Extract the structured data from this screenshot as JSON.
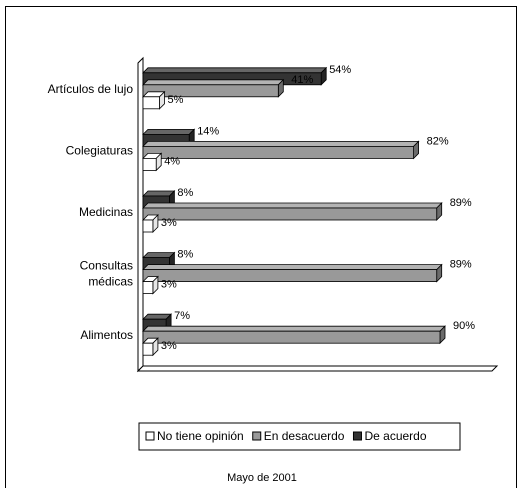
{
  "chart_data": {
    "type": "bar",
    "orientation": "horizontal",
    "three_d": true,
    "categories": [
      [
        "Artículos de lujo"
      ],
      [
        "Colegiaturas"
      ],
      [
        "Medicinas"
      ],
      [
        "Consultas",
        "médicas"
      ],
      [
        "Alimentos"
      ]
    ],
    "series": [
      {
        "name": "De acuerdo",
        "color": "#333333",
        "values": [
          54,
          14,
          8,
          8,
          7
        ]
      },
      {
        "name": "En desacuerdo",
        "color": "#999999",
        "values": [
          41,
          82,
          89,
          89,
          90
        ]
      },
      {
        "name": "No tiene opinión",
        "color": "#ffffff",
        "values": [
          5,
          4,
          3,
          3,
          3
        ]
      }
    ],
    "value_suffix": "%",
    "xlim": [
      0,
      100
    ],
    "grid": false,
    "legend": {
      "placement": "bottom",
      "order": [
        "No tiene opinión",
        "En desacuerdo",
        "De acuerdo"
      ]
    },
    "footer": "Mayo de 2001"
  }
}
